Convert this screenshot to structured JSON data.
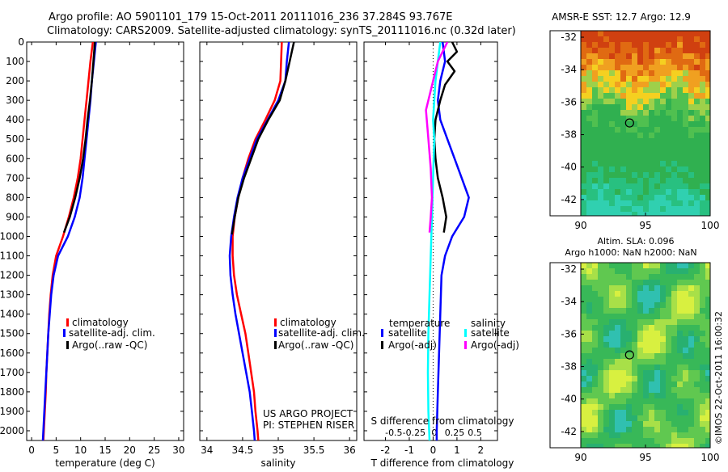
{
  "header": {
    "line1": "Argo profile: AO 5901101_179 15-Oct-2011 20111016_236 37.284S 93.767E",
    "line2": "Climatology: CARS2009. Satellite-adjusted climatology: synTS_20111016.nc (0.32d later)"
  },
  "colors": {
    "climatology": "#ff0000",
    "satellite": "#0000ff",
    "argo": "#000000",
    "salinity_satellite": "#00ffff",
    "salinity_argo": "#ff00ff"
  },
  "project": {
    "line1": "US ARGO PROJECT",
    "line2": "PI: STEPHEN RISER"
  },
  "credit": "©IMOS 22-Oct-2011 16:00:32",
  "chart_data": [
    {
      "id": "temperature",
      "type": "line",
      "xlabel": "temperature (deg C)",
      "xlim": [
        -1,
        31
      ],
      "xticks": [
        0,
        5,
        10,
        15,
        20,
        25,
        30
      ],
      "ylim": [
        2050,
        0
      ],
      "yticks": [
        0,
        100,
        200,
        300,
        400,
        500,
        600,
        700,
        800,
        900,
        1000,
        1100,
        1200,
        1300,
        1400,
        1500,
        1600,
        1700,
        1800,
        1900,
        2000
      ],
      "legend": [
        "climatology",
        "satellite-adj. clim.",
        "Argo(..raw -QC)"
      ],
      "series": [
        {
          "name": "climatology",
          "color": "#ff0000",
          "points": [
            [
              12.5,
              0
            ],
            [
              12.0,
              100
            ],
            [
              11.6,
              200
            ],
            [
              11.2,
              300
            ],
            [
              10.8,
              400
            ],
            [
              10.4,
              500
            ],
            [
              10.0,
              600
            ],
            [
              9.4,
              700
            ],
            [
              8.6,
              800
            ],
            [
              7.6,
              900
            ],
            [
              6.4,
              1000
            ],
            [
              5.0,
              1100
            ],
            [
              4.3,
              1200
            ],
            [
              3.9,
              1300
            ],
            [
              3.6,
              1400
            ],
            [
              3.4,
              1500
            ],
            [
              3.2,
              1600
            ],
            [
              3.0,
              1700
            ],
            [
              2.9,
              1800
            ],
            [
              2.7,
              1900
            ],
            [
              2.5,
              2000
            ],
            [
              2.4,
              2050
            ]
          ]
        },
        {
          "name": "satellite-adj. clim.",
          "color": "#0000ff",
          "points": [
            [
              13.1,
              0
            ],
            [
              12.7,
              100
            ],
            [
              12.3,
              200
            ],
            [
              12.0,
              300
            ],
            [
              11.6,
              400
            ],
            [
              11.2,
              500
            ],
            [
              10.8,
              600
            ],
            [
              10.4,
              700
            ],
            [
              9.8,
              800
            ],
            [
              8.8,
              900
            ],
            [
              7.4,
              1000
            ],
            [
              5.4,
              1100
            ],
            [
              4.5,
              1200
            ],
            [
              4.0,
              1300
            ],
            [
              3.7,
              1400
            ],
            [
              3.4,
              1500
            ],
            [
              3.2,
              1600
            ],
            [
              3.0,
              1700
            ],
            [
              2.8,
              1800
            ],
            [
              2.6,
              1900
            ],
            [
              2.4,
              2000
            ],
            [
              2.3,
              2050
            ]
          ]
        },
        {
          "name": "Argo(..raw -QC)",
          "color": "#000000",
          "points": [
            [
              12.9,
              0
            ],
            [
              12.6,
              100
            ],
            [
              12.3,
              200
            ],
            [
              11.9,
              300
            ],
            [
              11.4,
              400
            ],
            [
              11.0,
              500
            ],
            [
              10.5,
              600
            ],
            [
              9.8,
              700
            ],
            [
              8.9,
              800
            ],
            [
              7.8,
              900
            ],
            [
              6.6,
              980
            ]
          ]
        }
      ]
    },
    {
      "id": "salinity",
      "type": "line",
      "xlabel": "salinity",
      "xlim": [
        33.9,
        36.1
      ],
      "xticks": [
        34,
        34.5,
        35,
        35.5,
        36
      ],
      "ylim": [
        2050,
        0
      ],
      "legend": [
        "climatology",
        "satellite-adj. clim.",
        "Argo(..raw -QC)"
      ],
      "series": [
        {
          "name": "climatology",
          "color": "#ff0000",
          "points": [
            [
              35.05,
              0
            ],
            [
              35.04,
              100
            ],
            [
              35.03,
              200
            ],
            [
              34.95,
              300
            ],
            [
              34.82,
              400
            ],
            [
              34.68,
              500
            ],
            [
              34.58,
              600
            ],
            [
              34.5,
              700
            ],
            [
              34.44,
              800
            ],
            [
              34.39,
              900
            ],
            [
              34.36,
              1000
            ],
            [
              34.36,
              1100
            ],
            [
              34.38,
              1200
            ],
            [
              34.42,
              1300
            ],
            [
              34.48,
              1400
            ],
            [
              34.54,
              1500
            ],
            [
              34.58,
              1600
            ],
            [
              34.62,
              1700
            ],
            [
              34.66,
              1800
            ],
            [
              34.68,
              1900
            ],
            [
              34.71,
              2000
            ],
            [
              34.72,
              2050
            ]
          ]
        },
        {
          "name": "satellite-adj. clim.",
          "color": "#0000ff",
          "points": [
            [
              35.15,
              0
            ],
            [
              35.12,
              100
            ],
            [
              35.1,
              200
            ],
            [
              35.0,
              300
            ],
            [
              34.85,
              400
            ],
            [
              34.7,
              500
            ],
            [
              34.6,
              600
            ],
            [
              34.5,
              700
            ],
            [
              34.43,
              800
            ],
            [
              34.38,
              900
            ],
            [
              34.34,
              1000
            ],
            [
              34.32,
              1100
            ],
            [
              34.33,
              1200
            ],
            [
              34.36,
              1300
            ],
            [
              34.4,
              1400
            ],
            [
              34.45,
              1500
            ],
            [
              34.5,
              1600
            ],
            [
              34.55,
              1700
            ],
            [
              34.6,
              1800
            ],
            [
              34.63,
              1900
            ],
            [
              34.66,
              2000
            ],
            [
              34.67,
              2050
            ]
          ]
        },
        {
          "name": "Argo(..raw -QC)",
          "color": "#000000",
          "points": [
            [
              35.22,
              0
            ],
            [
              35.16,
              100
            ],
            [
              35.1,
              200
            ],
            [
              35.02,
              300
            ],
            [
              34.86,
              400
            ],
            [
              34.72,
              500
            ],
            [
              34.62,
              600
            ],
            [
              34.52,
              700
            ],
            [
              34.44,
              800
            ],
            [
              34.39,
              900
            ],
            [
              34.35,
              990
            ]
          ]
        }
      ]
    },
    {
      "id": "difference",
      "type": "line",
      "xlabel": "T difference from climatology",
      "xlabel2": "S difference from climatology",
      "xlim": [
        -2.9,
        2.7
      ],
      "xticks": [
        -2,
        -1,
        0,
        1,
        2
      ],
      "sticks": [
        "-0.5",
        "-0.25",
        "0",
        "0.25",
        "0.5"
      ],
      "ylim": [
        2050,
        0
      ],
      "legend_temperature_title": "temperature",
      "legend_salinity_title": "salinity",
      "legend": [
        "satellite",
        "Argo(-adj)",
        "satellite",
        "Argo(-adj)"
      ],
      "series": [
        {
          "name": "satellite",
          "group": "temperature",
          "color": "#0000ff",
          "points": [
            [
              0.4,
              0
            ],
            [
              0.5,
              100
            ],
            [
              0.3,
              200
            ],
            [
              0.2,
              300
            ],
            [
              0.3,
              400
            ],
            [
              0.6,
              500
            ],
            [
              0.9,
              600
            ],
            [
              1.2,
              700
            ],
            [
              1.5,
              800
            ],
            [
              1.3,
              900
            ],
            [
              0.8,
              1000
            ],
            [
              0.5,
              1100
            ],
            [
              0.35,
              1200
            ],
            [
              0.3,
              1400
            ],
            [
              0.25,
              1600
            ],
            [
              0.2,
              1800
            ],
            [
              0.15,
              2000
            ],
            [
              0.15,
              2050
            ]
          ]
        },
        {
          "name": "Argo(-adj)",
          "group": "temperature",
          "color": "#000000",
          "points": [
            [
              0.8,
              0
            ],
            [
              1.0,
              50
            ],
            [
              0.6,
              100
            ],
            [
              0.9,
              150
            ],
            [
              0.5,
              220
            ],
            [
              0.3,
              300
            ],
            [
              0.1,
              400
            ],
            [
              0.05,
              500
            ],
            [
              0.1,
              600
            ],
            [
              0.2,
              700
            ],
            [
              0.4,
              800
            ],
            [
              0.55,
              900
            ],
            [
              0.45,
              980
            ]
          ]
        },
        {
          "name": "satellite",
          "group": "salinity",
          "color": "#00ffff",
          "points": [
            [
              0.3,
              0
            ],
            [
              0.2,
              100
            ],
            [
              0.1,
              200
            ],
            [
              0.05,
              300
            ],
            [
              0.0,
              400
            ],
            [
              0.05,
              500
            ],
            [
              0.0,
              700
            ],
            [
              -0.05,
              900
            ],
            [
              -0.1,
              1100
            ],
            [
              -0.15,
              1300
            ],
            [
              -0.2,
              1500
            ],
            [
              -0.22,
              1700
            ],
            [
              -0.2,
              1900
            ],
            [
              -0.15,
              2050
            ]
          ]
        },
        {
          "name": "Argo(-adj)",
          "group": "salinity",
          "color": "#ff00ff",
          "points": [
            [
              0.6,
              0
            ],
            [
              0.2,
              100
            ],
            [
              -0.1,
              250
            ],
            [
              -0.3,
              350
            ],
            [
              -0.2,
              500
            ],
            [
              -0.1,
              650
            ],
            [
              -0.05,
              800
            ],
            [
              -0.1,
              900
            ],
            [
              -0.15,
              980
            ]
          ]
        }
      ]
    },
    {
      "id": "sst_map",
      "type": "heatmap",
      "title": "AMSR-E SST: 12.7 Argo: 12.9",
      "xticks": [
        90,
        95,
        100
      ],
      "yticks": [
        -32,
        -34,
        -36,
        -38,
        -40,
        -42
      ],
      "xlim": [
        90,
        100
      ],
      "ylim": [
        -43,
        -31.6
      ],
      "marker": {
        "lon": 93.77,
        "lat": -37.28
      }
    },
    {
      "id": "sla_map",
      "type": "heatmap",
      "title": "Altim. SLA: 0.096",
      "subtitle": "Argo h1000: NaN h2000: NaN",
      "xticks": [
        90,
        95,
        100
      ],
      "yticks": [
        -32,
        -34,
        -36,
        -38,
        -40,
        -42
      ],
      "xlim": [
        90,
        100
      ],
      "ylim": [
        -43,
        -31.6
      ],
      "marker": {
        "lon": 93.77,
        "lat": -37.28
      }
    }
  ]
}
